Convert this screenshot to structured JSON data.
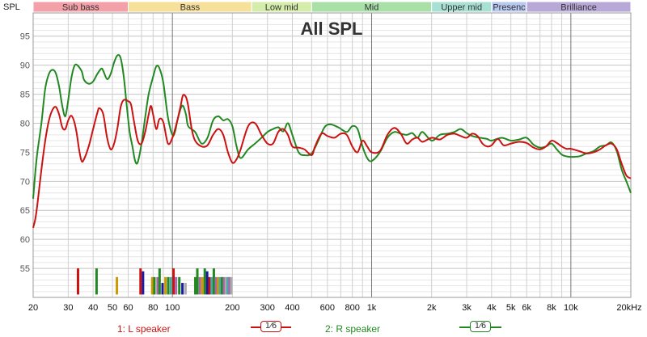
{
  "chart_data": {
    "type": "line",
    "title": "All SPL",
    "ylabel": "SPL",
    "x_unit_label": "Hz",
    "x_scale": "log",
    "xlim": [
      20,
      20000
    ],
    "ylim": [
      50,
      99
    ],
    "grid": true,
    "y_ticks": [
      55,
      60,
      65,
      70,
      75,
      80,
      85,
      90,
      95
    ],
    "x_ticks": [
      {
        "v": 20,
        "t": "20"
      },
      {
        "v": 30,
        "t": "30"
      },
      {
        "v": 40,
        "t": "40"
      },
      {
        "v": 50,
        "t": "50"
      },
      {
        "v": 60,
        "t": "60"
      },
      {
        "v": 80,
        "t": "80"
      },
      {
        "v": 100,
        "t": "100"
      },
      {
        "v": 200,
        "t": "200"
      },
      {
        "v": 300,
        "t": "300"
      },
      {
        "v": 400,
        "t": "400"
      },
      {
        "v": 600,
        "t": "600"
      },
      {
        "v": 800,
        "t": "800"
      },
      {
        "v": 1000,
        "t": "1k"
      },
      {
        "v": 2000,
        "t": "2k"
      },
      {
        "v": 3000,
        "t": "3k"
      },
      {
        "v": 4000,
        "t": "4k"
      },
      {
        "v": 5000,
        "t": "5k"
      },
      {
        "v": 6000,
        "t": "6k"
      },
      {
        "v": 8000,
        "t": "8k"
      },
      {
        "v": 10000,
        "t": "10k"
      },
      {
        "v": 20000,
        "t": "20kHz"
      }
    ],
    "bands": [
      {
        "name": "Sub bass",
        "from": 20,
        "to": 60,
        "color": "#f4a0a8"
      },
      {
        "name": "Bass",
        "from": 60,
        "to": 250,
        "color": "#f7e09a"
      },
      {
        "name": "Low mid",
        "from": 250,
        "to": 500,
        "color": "#d4edaa"
      },
      {
        "name": "Mid",
        "from": 500,
        "to": 2000,
        "color": "#a8e0a8"
      },
      {
        "name": "Upper mid",
        "from": 2000,
        "to": 4000,
        "color": "#a8e0d4"
      },
      {
        "name": "Presence",
        "from": 4000,
        "to": 6000,
        "color": "#b8c8f0",
        "display": "Presenc"
      },
      {
        "name": "Brilliance",
        "from": 6000,
        "to": 20000,
        "color": "#b8a8d8"
      }
    ],
    "series": [
      {
        "name": "1: L speaker",
        "color": "#cc1111",
        "points": [
          [
            20,
            62
          ],
          [
            20.5,
            63.5
          ],
          [
            21,
            66
          ],
          [
            22,
            72
          ],
          [
            23,
            77
          ],
          [
            24,
            80.5
          ],
          [
            25,
            82.3
          ],
          [
            26,
            82.8
          ],
          [
            27,
            81.5
          ],
          [
            28,
            79.3
          ],
          [
            29,
            79
          ],
          [
            30,
            80.5
          ],
          [
            31,
            81.3
          ],
          [
            32,
            80.5
          ],
          [
            33,
            78.5
          ],
          [
            34,
            75.5
          ],
          [
            35,
            73.5
          ],
          [
            36,
            73.8
          ],
          [
            38,
            76
          ],
          [
            40,
            79
          ],
          [
            42,
            81.8
          ],
          [
            43,
            82.6
          ],
          [
            45,
            81.5
          ],
          [
            47,
            77.5
          ],
          [
            49,
            75.5
          ],
          [
            51,
            76.5
          ],
          [
            53,
            79.2
          ],
          [
            55,
            82.8
          ],
          [
            57,
            84
          ],
          [
            60,
            83.8
          ],
          [
            62,
            83.2
          ],
          [
            64,
            80.5
          ],
          [
            67,
            77
          ],
          [
            70,
            76.5
          ],
          [
            73,
            78.5
          ],
          [
            76,
            81.5
          ],
          [
            78,
            83
          ],
          [
            80,
            81.5
          ],
          [
            83,
            79
          ],
          [
            86,
            80.7
          ],
          [
            90,
            80.2
          ],
          [
            95,
            76.5
          ],
          [
            100,
            77.5
          ],
          [
            105,
            80
          ],
          [
            110,
            83
          ],
          [
            113,
            84.8
          ],
          [
            117,
            84.5
          ],
          [
            120,
            83
          ],
          [
            125,
            79
          ],
          [
            130,
            77
          ],
          [
            140,
            76
          ],
          [
            150,
            76.2
          ],
          [
            160,
            78
          ],
          [
            170,
            79
          ],
          [
            180,
            78
          ],
          [
            190,
            75
          ],
          [
            200,
            73.2
          ],
          [
            210,
            73.8
          ],
          [
            220,
            75.5
          ],
          [
            240,
            79.5
          ],
          [
            260,
            80
          ],
          [
            280,
            78
          ],
          [
            300,
            76.5
          ],
          [
            320,
            76.5
          ],
          [
            340,
            78.5
          ],
          [
            360,
            79
          ],
          [
            380,
            78
          ],
          [
            400,
            76
          ],
          [
            430,
            75.8
          ],
          [
            460,
            75.5
          ],
          [
            500,
            74.5
          ],
          [
            520,
            76
          ],
          [
            560,
            78.2
          ],
          [
            600,
            77.8
          ],
          [
            650,
            77.5
          ],
          [
            700,
            78.2
          ],
          [
            750,
            78
          ],
          [
            800,
            76
          ],
          [
            850,
            75
          ],
          [
            900,
            77
          ],
          [
            950,
            76
          ],
          [
            1000,
            75
          ],
          [
            1100,
            75.2
          ],
          [
            1200,
            78
          ],
          [
            1300,
            79.2
          ],
          [
            1400,
            78.2
          ],
          [
            1500,
            76.5
          ],
          [
            1600,
            77.2
          ],
          [
            1700,
            77.5
          ],
          [
            1800,
            76.8
          ],
          [
            2000,
            77.5
          ],
          [
            2200,
            77.2
          ],
          [
            2400,
            78
          ],
          [
            2600,
            78.2
          ],
          [
            2800,
            77.8
          ],
          [
            3000,
            77.5
          ],
          [
            3200,
            78.2
          ],
          [
            3400,
            77.8
          ],
          [
            3600,
            76.5
          ],
          [
            3800,
            76
          ],
          [
            4000,
            76.2
          ],
          [
            4300,
            77.3
          ],
          [
            4600,
            76.2
          ],
          [
            5000,
            76.5
          ],
          [
            5500,
            76.8
          ],
          [
            6000,
            76.6
          ],
          [
            6500,
            75.8
          ],
          [
            7000,
            75.5
          ],
          [
            7500,
            76
          ],
          [
            8000,
            77
          ],
          [
            8500,
            76.6
          ],
          [
            9000,
            76
          ],
          [
            9500,
            75.6
          ],
          [
            10000,
            75.6
          ],
          [
            11000,
            75.2
          ],
          [
            12000,
            74.8
          ],
          [
            13000,
            75
          ],
          [
            14000,
            75.5
          ],
          [
            15000,
            76.2
          ],
          [
            16000,
            76.5
          ],
          [
            17000,
            75.5
          ],
          [
            18000,
            73
          ],
          [
            19000,
            71
          ],
          [
            20000,
            70.5
          ]
        ]
      },
      {
        "name": "2: R speaker",
        "color": "#228822",
        "points": [
          [
            20,
            67
          ],
          [
            20.5,
            71.5
          ],
          [
            21,
            75
          ],
          [
            22,
            80
          ],
          [
            23,
            86
          ],
          [
            24,
            88.5
          ],
          [
            25,
            89.2
          ],
          [
            26,
            88.6
          ],
          [
            27,
            86.3
          ],
          [
            28,
            83
          ],
          [
            29,
            81.2
          ],
          [
            30,
            84
          ],
          [
            31,
            87.5
          ],
          [
            32,
            89.6
          ],
          [
            33,
            90.1
          ],
          [
            35,
            89
          ],
          [
            36,
            87.5
          ],
          [
            38,
            86.8
          ],
          [
            40,
            87.2
          ],
          [
            42,
            88.5
          ],
          [
            44,
            89.4
          ],
          [
            45,
            89
          ],
          [
            47,
            87.6
          ],
          [
            49,
            88.5
          ],
          [
            51,
            90.5
          ],
          [
            53,
            91.7
          ],
          [
            55,
            91.2
          ],
          [
            57,
            88
          ],
          [
            59,
            83
          ],
          [
            61,
            78.5
          ],
          [
            63,
            76
          ],
          [
            65,
            73.5
          ],
          [
            67,
            73.3
          ],
          [
            70,
            76.5
          ],
          [
            73,
            81
          ],
          [
            76,
            85
          ],
          [
            80,
            88
          ],
          [
            83,
            89.8
          ],
          [
            86,
            89.5
          ],
          [
            90,
            87
          ],
          [
            95,
            81
          ],
          [
            100,
            78
          ],
          [
            103,
            78.5
          ],
          [
            106,
            80.5
          ],
          [
            110,
            82.5
          ],
          [
            113,
            83
          ],
          [
            117,
            81.5
          ],
          [
            120,
            79.5
          ],
          [
            130,
            78.5
          ],
          [
            140,
            76.5
          ],
          [
            150,
            77.5
          ],
          [
            160,
            80.5
          ],
          [
            170,
            81.2
          ],
          [
            180,
            80.5
          ],
          [
            190,
            80.7
          ],
          [
            200,
            79.5
          ],
          [
            210,
            76
          ],
          [
            220,
            74
          ],
          [
            240,
            75.5
          ],
          [
            260,
            76.5
          ],
          [
            280,
            77.5
          ],
          [
            300,
            78.5
          ],
          [
            320,
            79
          ],
          [
            340,
            79.3
          ],
          [
            360,
            78.6
          ],
          [
            380,
            80
          ],
          [
            400,
            78
          ],
          [
            430,
            75
          ],
          [
            460,
            74.5
          ],
          [
            500,
            74.8
          ],
          [
            540,
            77
          ],
          [
            580,
            79.3
          ],
          [
            620,
            79.8
          ],
          [
            680,
            79.3
          ],
          [
            750,
            78.5
          ],
          [
            800,
            79.5
          ],
          [
            850,
            79
          ],
          [
            900,
            76
          ],
          [
            950,
            74
          ],
          [
            1000,
            73.5
          ],
          [
            1100,
            75
          ],
          [
            1200,
            77.5
          ],
          [
            1300,
            78.5
          ],
          [
            1400,
            78.2
          ],
          [
            1500,
            78
          ],
          [
            1600,
            78.3
          ],
          [
            1700,
            77.5
          ],
          [
            1800,
            78.5
          ],
          [
            2000,
            77
          ],
          [
            2200,
            78
          ],
          [
            2400,
            78.2
          ],
          [
            2600,
            78.5
          ],
          [
            2800,
            79
          ],
          [
            3000,
            78.3
          ],
          [
            3200,
            77.8
          ],
          [
            3500,
            77.5
          ],
          [
            3800,
            77.3
          ],
          [
            4000,
            77
          ],
          [
            4500,
            77.5
          ],
          [
            5000,
            77
          ],
          [
            5500,
            77.2
          ],
          [
            6000,
            77.5
          ],
          [
            6500,
            76.3
          ],
          [
            7000,
            75.8
          ],
          [
            7500,
            76
          ],
          [
            8000,
            76.5
          ],
          [
            8500,
            75.5
          ],
          [
            9000,
            74.6
          ],
          [
            9500,
            74.3
          ],
          [
            10000,
            74.2
          ],
          [
            11000,
            74.3
          ],
          [
            12000,
            74.8
          ],
          [
            13000,
            75.2
          ],
          [
            14000,
            76
          ],
          [
            15000,
            76.2
          ],
          [
            16000,
            76.7
          ],
          [
            17000,
            75.2
          ],
          [
            18000,
            72
          ],
          [
            19000,
            70
          ],
          [
            20000,
            68
          ]
        ]
      }
    ],
    "markers": [
      {
        "f": 33.5,
        "h": 4.5,
        "c": "#cc1111"
      },
      {
        "f": 41.5,
        "h": 4.5,
        "c": "#228822"
      },
      {
        "f": 52.5,
        "h": 3,
        "c": "#cc9900"
      },
      {
        "f": 69,
        "h": 4.5,
        "c": "#cc1111"
      },
      {
        "f": 71,
        "h": 4,
        "c": "#1a1aa0"
      },
      {
        "f": 79,
        "h": 3,
        "c": "#cc9900"
      },
      {
        "f": 81,
        "h": 3,
        "c": "#228822"
      },
      {
        "f": 84,
        "h": 3,
        "c": "#aa66aa"
      },
      {
        "f": 86,
        "h": 4.5,
        "c": "#228822"
      },
      {
        "f": 89,
        "h": 2,
        "c": "#1a1aa0"
      },
      {
        "f": 92,
        "h": 3,
        "c": "#cc9900"
      },
      {
        "f": 95,
        "h": 3,
        "c": "#228822"
      },
      {
        "f": 98,
        "h": 3,
        "c": "#44aaaa"
      },
      {
        "f": 101,
        "h": 4.5,
        "c": "#cc1111"
      },
      {
        "f": 104,
        "h": 3,
        "c": "#aa66aa"
      },
      {
        "f": 108,
        "h": 3,
        "c": "#228822"
      },
      {
        "f": 112,
        "h": 2,
        "c": "#1a1aa0"
      },
      {
        "f": 116,
        "h": 2,
        "c": "#aaaaaa"
      },
      {
        "f": 130,
        "h": 3,
        "c": "#228822"
      },
      {
        "f": 133,
        "h": 4.5,
        "c": "#228822"
      },
      {
        "f": 137,
        "h": 3,
        "c": "#aa66aa"
      },
      {
        "f": 141,
        "h": 3,
        "c": "#cc9900"
      },
      {
        "f": 145,
        "h": 4.5,
        "c": "#228822"
      },
      {
        "f": 149,
        "h": 4,
        "c": "#1a1aa0"
      },
      {
        "f": 153,
        "h": 3,
        "c": "#cc1111"
      },
      {
        "f": 157,
        "h": 3,
        "c": "#44aaaa"
      },
      {
        "f": 161,
        "h": 4.5,
        "c": "#228822"
      },
      {
        "f": 165,
        "h": 3,
        "c": "#aa66aa"
      },
      {
        "f": 169,
        "h": 3,
        "c": "#cc9900"
      },
      {
        "f": 173,
        "h": 3,
        "c": "#44aaaa"
      },
      {
        "f": 177,
        "h": 3,
        "c": "#228822"
      },
      {
        "f": 181,
        "h": 3,
        "c": "#aa66aa"
      },
      {
        "f": 185,
        "h": 3,
        "c": "#aaaaaa"
      },
      {
        "f": 189,
        "h": 3,
        "c": "#44aaaa"
      },
      {
        "f": 193,
        "h": 3,
        "c": "#aa66aa"
      },
      {
        "f": 197,
        "h": 3,
        "c": "#aaaaaa"
      }
    ]
  },
  "legend": {
    "l_label": "1: L speaker",
    "r_label": "2: R speaker",
    "smoothing": "1⁄6"
  }
}
